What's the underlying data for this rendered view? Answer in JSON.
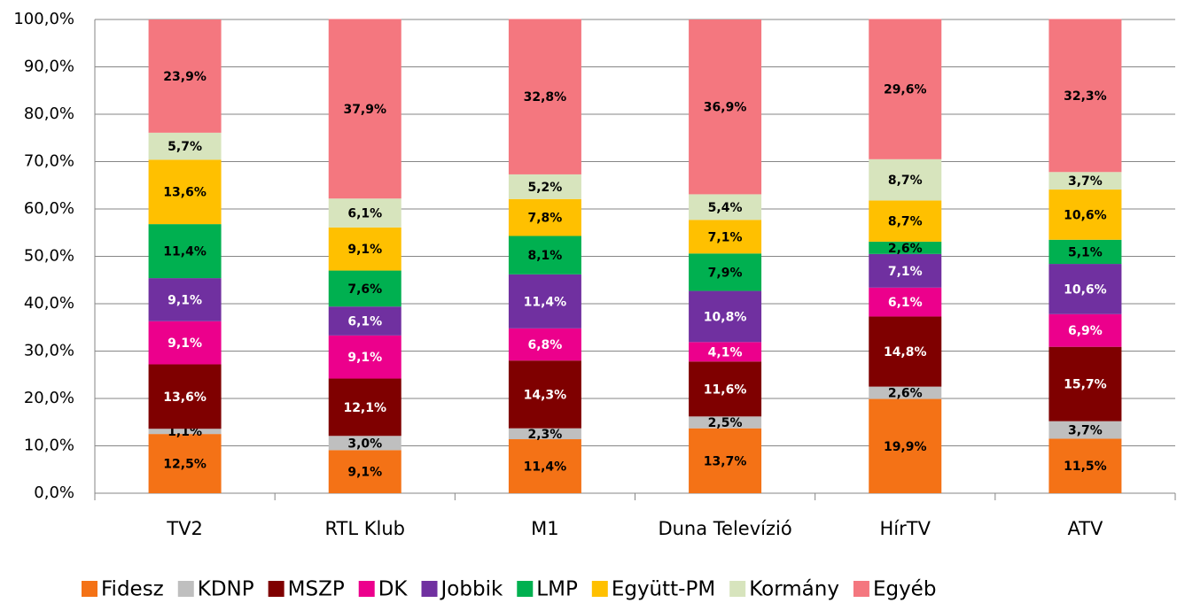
{
  "chart_data": {
    "type": "stacked_bar",
    "categories": [
      "TV2",
      "RTL Klub",
      "M1",
      "Duna Televízió",
      "HírTV",
      "ATV"
    ],
    "series": [
      {
        "name": "Fidesz",
        "color": "#f47216",
        "values": [
          12.5,
          9.1,
          11.4,
          13.7,
          19.9,
          11.5
        ],
        "value_labels": [
          "12,5%",
          "9,1%",
          "11,4%",
          "13,7%",
          "19,9%",
          "11,5%"
        ]
      },
      {
        "name": "KDNP",
        "color": "#bfbfbf",
        "values": [
          1.1,
          3.0,
          2.3,
          2.5,
          2.6,
          3.7
        ],
        "value_labels": [
          "1,1%",
          "3,0%",
          "2,3%",
          "2,5%",
          "2,6%",
          "3,7%"
        ]
      },
      {
        "name": "MSZP",
        "color": "#7f0000",
        "values": [
          13.6,
          12.1,
          14.3,
          11.6,
          14.8,
          15.7
        ],
        "value_labels": [
          "13,6%",
          "12,1%",
          "14,3%",
          "11,6%",
          "14,8%",
          "15,7%"
        ]
      },
      {
        "name": "DK",
        "color": "#ec008c",
        "values": [
          9.1,
          9.1,
          6.8,
          4.1,
          6.1,
          6.9
        ],
        "value_labels": [
          "9,1%",
          "9,1%",
          "6,8%",
          "4,1%",
          "6,1%",
          "6,9%"
        ]
      },
      {
        "name": "Jobbik",
        "color": "#7030a0",
        "values": [
          9.1,
          6.1,
          11.4,
          10.8,
          7.1,
          10.6
        ],
        "value_labels": [
          "9,1%",
          "6,1%",
          "11,4%",
          "10,8%",
          "7,1%",
          "10,6%"
        ]
      },
      {
        "name": "LMP",
        "color": "#00b050",
        "values": [
          11.4,
          7.6,
          8.1,
          7.9,
          2.6,
          5.1
        ],
        "value_labels": [
          "11,4%",
          "7,6%",
          "8,1%",
          "7,9%",
          "2,6%",
          "5,1%"
        ]
      },
      {
        "name": "Együtt-PM",
        "color": "#ffc000",
        "values": [
          13.6,
          9.1,
          7.8,
          7.1,
          8.7,
          10.6
        ],
        "value_labels": [
          "13,6%",
          "9,1%",
          "7,8%",
          "7,1%",
          "8,7%",
          "10,6%"
        ]
      },
      {
        "name": "Kormány",
        "color": "#d7e4bd",
        "values": [
          5.7,
          6.1,
          5.2,
          5.4,
          8.7,
          3.7
        ],
        "value_labels": [
          "5,7%",
          "6,1%",
          "5,2%",
          "5,4%",
          "8,7%",
          "3,7%"
        ]
      },
      {
        "name": "Egyéb",
        "color": "#f4777f",
        "values": [
          23.9,
          37.9,
          32.8,
          36.9,
          29.6,
          32.3
        ],
        "value_labels": [
          "23,9%",
          "37,9%",
          "32,8%",
          "36,9%",
          "29,6%",
          "32,3%"
        ]
      }
    ],
    "ylim": [
      0,
      100
    ],
    "yticks": [
      {
        "value": 0,
        "label": "0,0%"
      },
      {
        "value": 10,
        "label": "10,0%"
      },
      {
        "value": 20,
        "label": "20,0%"
      },
      {
        "value": 30,
        "label": "30,0%"
      },
      {
        "value": 40,
        "label": "40,0%"
      },
      {
        "value": 50,
        "label": "50,0%"
      },
      {
        "value": 60,
        "label": "60,0%"
      },
      {
        "value": 70,
        "label": "70,0%"
      },
      {
        "value": 80,
        "label": "80,0%"
      },
      {
        "value": 90,
        "label": "90,0%"
      },
      {
        "value": 100,
        "label": "100,0%"
      }
    ],
    "grid": true,
    "legend": "bottom"
  }
}
